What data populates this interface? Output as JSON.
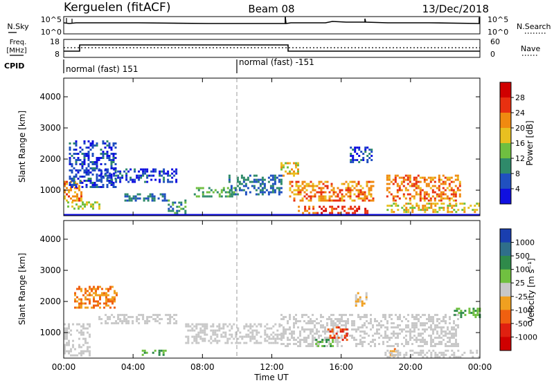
{
  "header": {
    "title": "Kerguelen (fitACF)",
    "beam": "Beam 08",
    "date": "13/Dec/2018"
  },
  "strip_nsky": {
    "label": "N.Sky",
    "left_ticks": [
      "10^5",
      "10^0"
    ],
    "right_ticks": [
      "10^5",
      "10^0"
    ],
    "right_label": "N.Search"
  },
  "strip_freq": {
    "label_line1": "Freq.",
    "label_line2": "[MHz]",
    "left_ticks": [
      "18",
      "8"
    ],
    "right_ticks": [
      "60",
      "0"
    ],
    "right_label": "Nave"
  },
  "cpid": {
    "label": "CPID",
    "segments": [
      {
        "start": "00:00",
        "text": "normal (fast) 151"
      },
      {
        "start": "10:00",
        "text": "normal (fast) -151"
      }
    ]
  },
  "power_panel": {
    "ylabel": "Slant Range [km]",
    "y_ticks": [
      "1000",
      "2000",
      "3000",
      "4000"
    ],
    "colorbar": {
      "label": "Power [dB]",
      "ticks": [
        "4",
        "8",
        "12",
        "16",
        "20",
        "24",
        "28"
      ],
      "colors": [
        "#1010e0",
        "#2050c0",
        "#2f8a6a",
        "#6fbf40",
        "#e8c020",
        "#f08a10",
        "#e83010",
        "#d00000"
      ]
    }
  },
  "velocity_panel": {
    "ylabel": "Slant Range [km]",
    "y_ticks": [
      "1000",
      "2000",
      "3000",
      "4000"
    ],
    "colorbar": {
      "label": "Velocity [m s⁻¹]",
      "ticks": [
        "1000",
        "500",
        "100",
        "25",
        "-25",
        "-100",
        "-500",
        "-1000"
      ],
      "colors": [
        "#1a3fb0",
        "#2f6f8a",
        "#2f8a4a",
        "#70c040",
        "#c8c8c8",
        "#f0a020",
        "#f06010",
        "#e02010",
        "#d00000"
      ]
    }
  },
  "x_axis": {
    "ticks": [
      "00:00",
      "04:00",
      "08:00",
      "12:00",
      "16:00",
      "20:00",
      "00:00"
    ],
    "label": "Time UT"
  },
  "chart_data": [
    {
      "type": "heatmap",
      "name": "power",
      "xlabel": "Time UT",
      "ylabel": "Slant Range [km]",
      "colorbar_label": "Power [dB]",
      "xlim_hours": [
        0,
        24
      ],
      "ylim_km": [
        180,
        4600
      ],
      "clim": [
        0,
        32
      ],
      "grid": false,
      "regions": [
        {
          "t": [
            0.0,
            1.0
          ],
          "r": [
            700,
            1300
          ],
          "v": 22
        },
        {
          "t": [
            0.2,
            2.0
          ],
          "r": [
            380,
            640
          ],
          "v": 16
        },
        {
          "t": [
            0.3,
            3.0
          ],
          "r": [
            1100,
            2600
          ],
          "v": 5
        },
        {
          "t": [
            2.0,
            6.5
          ],
          "r": [
            1300,
            1700
          ],
          "v": 5
        },
        {
          "t": [
            3.5,
            6.0
          ],
          "r": [
            700,
            900
          ],
          "v": 8
        },
        {
          "t": [
            6.0,
            7.0
          ],
          "r": [
            300,
            700
          ],
          "v": 10
        },
        {
          "t": [
            7.5,
            10.0
          ],
          "r": [
            800,
            1100
          ],
          "v": 12
        },
        {
          "t": [
            9.5,
            12.5
          ],
          "r": [
            900,
            1500
          ],
          "v": 8
        },
        {
          "t": [
            12.5,
            13.5
          ],
          "r": [
            1500,
            1900
          ],
          "v": 18
        },
        {
          "t": [
            13.0,
            17.8
          ],
          "r": [
            650,
            1300
          ],
          "v": 22
        },
        {
          "t": [
            13.5,
            17.5
          ],
          "r": [
            300,
            500
          ],
          "v": 26
        },
        {
          "t": [
            16.5,
            17.8
          ],
          "r": [
            1900,
            2400
          ],
          "v": 6
        },
        {
          "t": [
            18.6,
            22.8
          ],
          "r": [
            700,
            1500
          ],
          "v": 23
        },
        {
          "t": [
            18.5,
            24.0
          ],
          "r": [
            300,
            600
          ],
          "v": 18
        }
      ]
    },
    {
      "type": "heatmap",
      "name": "velocity",
      "xlabel": "Time UT",
      "ylabel": "Slant Range [km]",
      "colorbar_label": "Velocity [m s⁻¹]",
      "xlim_hours": [
        0,
        24
      ],
      "ylim_km": [
        180,
        4600
      ],
      "clim": [
        -1000,
        1000
      ],
      "grid": false,
      "regions": [
        {
          "t": [
            0.0,
            1.5
          ],
          "r": [
            300,
            1300
          ],
          "v": 0
        },
        {
          "t": [
            0.6,
            3.0
          ],
          "r": [
            1800,
            2500
          ],
          "v": -100
        },
        {
          "t": [
            2.0,
            6.5
          ],
          "r": [
            1300,
            1600
          ],
          "v": 0
        },
        {
          "t": [
            4.5,
            6.0
          ],
          "r": [
            300,
            450
          ],
          "v": 100
        },
        {
          "t": [
            7.0,
            12.5
          ],
          "r": [
            700,
            1300
          ],
          "v": 0
        },
        {
          "t": [
            12.5,
            22.8
          ],
          "r": [
            600,
            1600
          ],
          "v": 0
        },
        {
          "t": [
            15.2,
            16.3
          ],
          "r": [
            800,
            1200
          ],
          "v": -500
        },
        {
          "t": [
            14.5,
            15.5
          ],
          "r": [
            600,
            800
          ],
          "v": 100
        },
        {
          "t": [
            16.8,
            17.5
          ],
          "r": [
            1900,
            2300
          ],
          "v": -25
        },
        {
          "t": [
            18.8,
            19.2
          ],
          "r": [
            300,
            500
          ],
          "v": -100
        },
        {
          "t": [
            22.5,
            24.0
          ],
          "r": [
            1500,
            1800
          ],
          "v": 100
        },
        {
          "t": [
            18.5,
            24.0
          ],
          "r": [
            200,
            450
          ],
          "v": 0
        }
      ]
    }
  ]
}
